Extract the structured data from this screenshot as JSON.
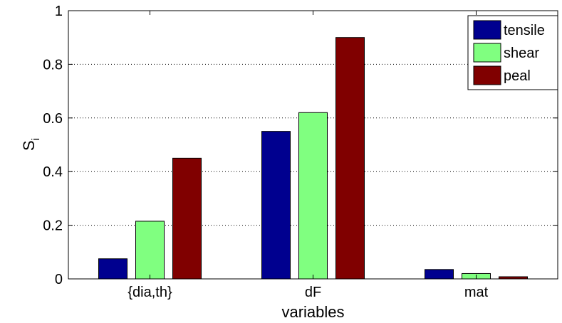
{
  "chart_data": {
    "type": "bar",
    "categories": [
      "{dia,th}",
      "dF",
      "mat"
    ],
    "series": [
      {
        "name": "tensile",
        "color": "#00008f",
        "values": [
          0.075,
          0.55,
          0.035
        ]
      },
      {
        "name": "shear",
        "color": "#80ff80",
        "values": [
          0.215,
          0.62,
          0.02
        ]
      },
      {
        "name": "peal",
        "color": "#800000",
        "values": [
          0.45,
          0.9,
          0.008
        ]
      }
    ],
    "xlabel": "variables",
    "ylabel": "S",
    "ylabel_subscript": "i",
    "ylim": [
      0,
      1
    ],
    "yticks": [
      "0",
      "0.2",
      "0.4",
      "0.6",
      "0.8",
      "1"
    ],
    "grid": "horizontal dotted",
    "legend_position": "top-right"
  }
}
